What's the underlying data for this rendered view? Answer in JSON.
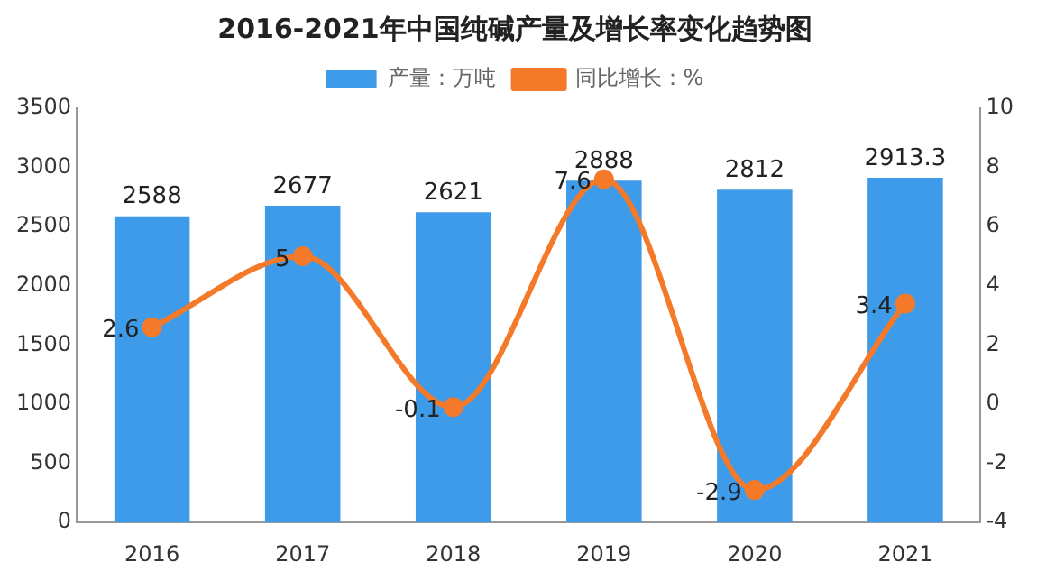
{
  "chart_data": {
    "type": "bar",
    "title": "2016-2021年中国纯碱产量及增长率变化趋势图",
    "categories": [
      "2016",
      "2017",
      "2018",
      "2019",
      "2020",
      "2021"
    ],
    "series": [
      {
        "name": "产量：万吨",
        "color": "#3d9be9",
        "values": [
          2588,
          2677,
          2621,
          2888,
          2812,
          2913.3
        ]
      },
      {
        "name": "同比增长：%",
        "type": "line",
        "axis": "y2",
        "color": "#f47a2a",
        "values": [
          2.6,
          5,
          -0.1,
          7.6,
          -2.9,
          3.4
        ]
      }
    ],
    "ylim": [
      0,
      3500
    ],
    "yticks": [
      0,
      500,
      1000,
      1500,
      2000,
      2500,
      3000,
      3500
    ],
    "y2lim": [
      -4,
      10
    ],
    "y2ticks": [
      -4,
      -2,
      0,
      2,
      4,
      6,
      8,
      10
    ],
    "legend": "top",
    "marker": "circle",
    "data_labels": true
  }
}
